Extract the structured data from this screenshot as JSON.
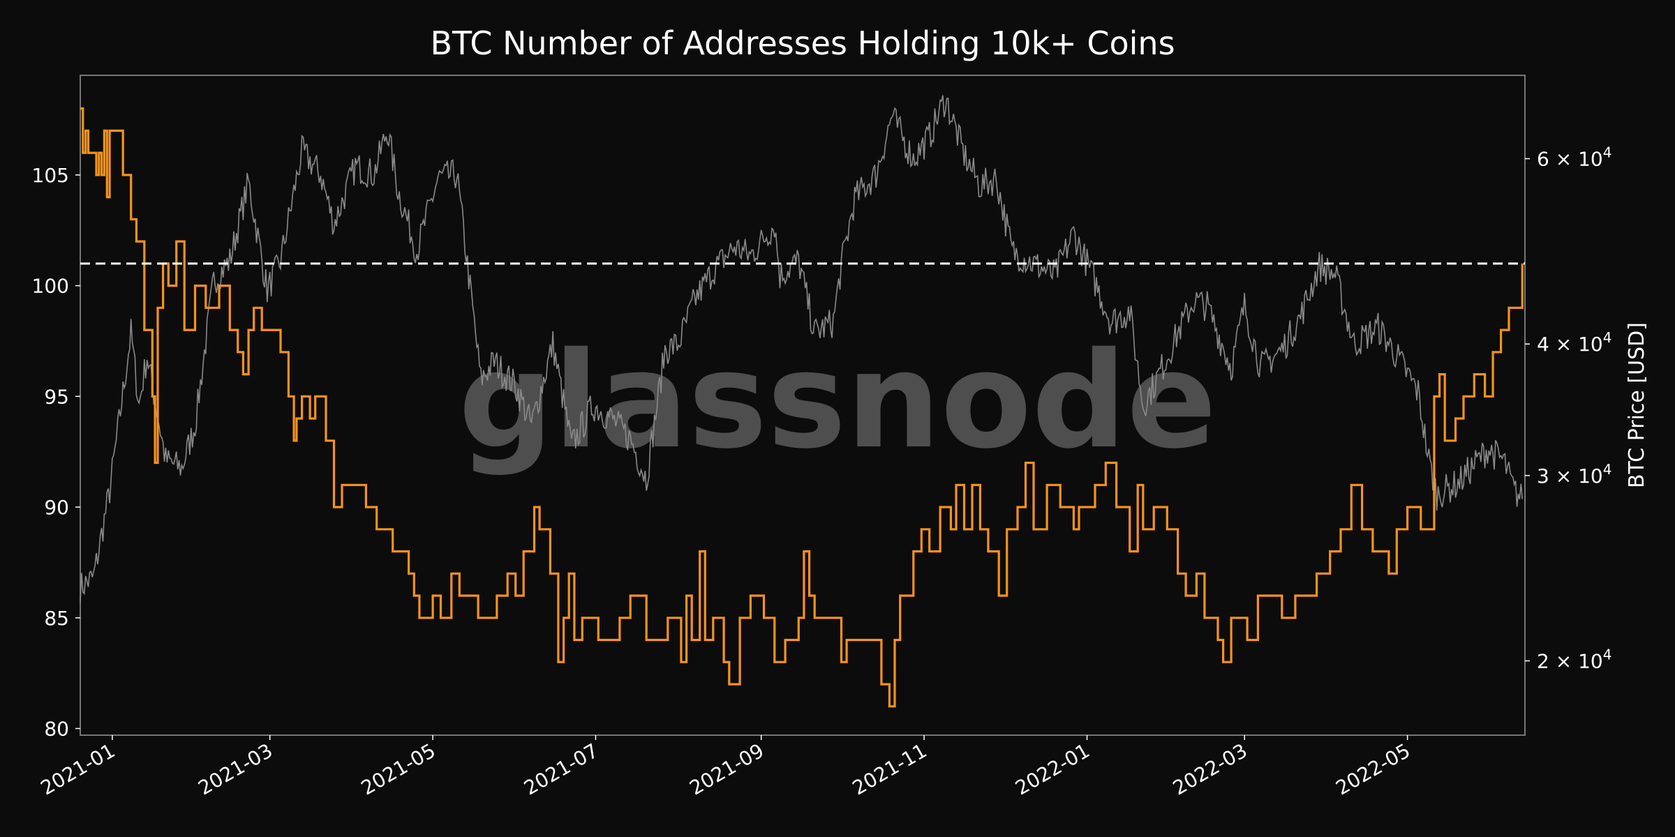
{
  "chart_data": {
    "type": "line",
    "title": "BTC Number of Addresses Holding 10k+ Coins",
    "xlabel": "",
    "ylabel": "",
    "y2label": "BTC Price [USD]",
    "watermark": "glassnode",
    "x_start": "2020-12-20",
    "x_end": "2022-06-14",
    "x_ticks": [
      "2021-01",
      "2021-03",
      "2021-05",
      "2021-07",
      "2021-09",
      "2021-11",
      "2022-01",
      "2022-03",
      "2022-05"
    ],
    "ylim": [
      79.7,
      109.5
    ],
    "y_ticks": [
      80,
      85,
      90,
      95,
      100,
      105
    ],
    "y2_scale": "log",
    "y2lim": [
      17000,
      72000
    ],
    "y2_ticks": [
      {
        "value": 20000,
        "mantissa": "2"
      },
      {
        "value": 30000,
        "mantissa": "3"
      },
      {
        "value": 40000,
        "mantissa": "4"
      },
      {
        "value": 60000,
        "mantissa": "6"
      }
    ],
    "y2_tick_base": "10",
    "y2_tick_exp": "4",
    "reference_line": 101,
    "colors": {
      "addresses": "#f7931a",
      "price": "#8a8a8a",
      "background": "#0c0c0c",
      "reference": "#ffffff",
      "watermark": "#5a5a5a"
    },
    "series": [
      {
        "axis": "left",
        "step": true,
        "points": [
          [
            "2020-12-20",
            108
          ],
          [
            "2020-12-21",
            106
          ],
          [
            "2020-12-22",
            107
          ],
          [
            "2020-12-23",
            106
          ],
          [
            "2020-12-26",
            105
          ],
          [
            "2020-12-27",
            106
          ],
          [
            "2020-12-28",
            105
          ],
          [
            "2020-12-29",
            107
          ],
          [
            "2020-12-30",
            104
          ],
          [
            "2020-12-31",
            107
          ],
          [
            "2021-01-05",
            105
          ],
          [
            "2021-01-08",
            103
          ],
          [
            "2021-01-10",
            102
          ],
          [
            "2021-01-13",
            98
          ],
          [
            "2021-01-16",
            95
          ],
          [
            "2021-01-17",
            92
          ],
          [
            "2021-01-18",
            99
          ],
          [
            "2021-01-20",
            101
          ],
          [
            "2021-01-22",
            100
          ],
          [
            "2021-01-25",
            102
          ],
          [
            "2021-01-28",
            98
          ],
          [
            "2021-02-01",
            100
          ],
          [
            "2021-02-05",
            99
          ],
          [
            "2021-02-10",
            100
          ],
          [
            "2021-02-14",
            98
          ],
          [
            "2021-02-17",
            97
          ],
          [
            "2021-02-19",
            96
          ],
          [
            "2021-02-21",
            98
          ],
          [
            "2021-02-23",
            99
          ],
          [
            "2021-02-26",
            98
          ],
          [
            "2021-03-05",
            97
          ],
          [
            "2021-03-08",
            95
          ],
          [
            "2021-03-10",
            93
          ],
          [
            "2021-03-11",
            94
          ],
          [
            "2021-03-13",
            95
          ],
          [
            "2021-03-16",
            94
          ],
          [
            "2021-03-18",
            95
          ],
          [
            "2021-03-22",
            93
          ],
          [
            "2021-03-25",
            90
          ],
          [
            "2021-03-28",
            91
          ],
          [
            "2021-04-06",
            90
          ],
          [
            "2021-04-10",
            89
          ],
          [
            "2021-04-16",
            88
          ],
          [
            "2021-04-22",
            87
          ],
          [
            "2021-04-24",
            86
          ],
          [
            "2021-04-26",
            85
          ],
          [
            "2021-05-01",
            86
          ],
          [
            "2021-05-04",
            85
          ],
          [
            "2021-05-08",
            87
          ],
          [
            "2021-05-11",
            86
          ],
          [
            "2021-05-18",
            85
          ],
          [
            "2021-05-25",
            86
          ],
          [
            "2021-05-29",
            87
          ],
          [
            "2021-06-01",
            86
          ],
          [
            "2021-06-04",
            88
          ],
          [
            "2021-06-08",
            90
          ],
          [
            "2021-06-10",
            89
          ],
          [
            "2021-06-14",
            87
          ],
          [
            "2021-06-17",
            83
          ],
          [
            "2021-06-19",
            85
          ],
          [
            "2021-06-21",
            87
          ],
          [
            "2021-06-23",
            84
          ],
          [
            "2021-06-26",
            85
          ],
          [
            "2021-07-02",
            84
          ],
          [
            "2021-07-10",
            85
          ],
          [
            "2021-07-14",
            86
          ],
          [
            "2021-07-20",
            84
          ],
          [
            "2021-07-28",
            85
          ],
          [
            "2021-08-02",
            83
          ],
          [
            "2021-08-04",
            86
          ],
          [
            "2021-08-06",
            84
          ],
          [
            "2021-08-09",
            88
          ],
          [
            "2021-08-11",
            84
          ],
          [
            "2021-08-14",
            85
          ],
          [
            "2021-08-18",
            83
          ],
          [
            "2021-08-20",
            82
          ],
          [
            "2021-08-24",
            85
          ],
          [
            "2021-08-28",
            86
          ],
          [
            "2021-09-02",
            85
          ],
          [
            "2021-09-06",
            83
          ],
          [
            "2021-09-10",
            84
          ],
          [
            "2021-09-15",
            85
          ],
          [
            "2021-09-17",
            88
          ],
          [
            "2021-09-19",
            86
          ],
          [
            "2021-09-21",
            85
          ],
          [
            "2021-10-01",
            83
          ],
          [
            "2021-10-03",
            84
          ],
          [
            "2021-10-07",
            84
          ],
          [
            "2021-10-10",
            84
          ],
          [
            "2021-10-16",
            82
          ],
          [
            "2021-10-19",
            81
          ],
          [
            "2021-10-21",
            84
          ],
          [
            "2021-10-23",
            86
          ],
          [
            "2021-10-26",
            86
          ],
          [
            "2021-10-28",
            88
          ],
          [
            "2021-10-31",
            89
          ],
          [
            "2021-11-03",
            88
          ],
          [
            "2021-11-07",
            90
          ],
          [
            "2021-11-11",
            89
          ],
          [
            "2021-11-13",
            91
          ],
          [
            "2021-11-16",
            89
          ],
          [
            "2021-11-19",
            91
          ],
          [
            "2021-11-22",
            89
          ],
          [
            "2021-11-25",
            88
          ],
          [
            "2021-11-29",
            86
          ],
          [
            "2021-12-02",
            89
          ],
          [
            "2021-12-06",
            90
          ],
          [
            "2021-12-09",
            92
          ],
          [
            "2021-12-12",
            89
          ],
          [
            "2021-12-17",
            91
          ],
          [
            "2021-12-22",
            90
          ],
          [
            "2021-12-27",
            89
          ],
          [
            "2021-12-29",
            90
          ],
          [
            "2022-01-04",
            91
          ],
          [
            "2022-01-08",
            92
          ],
          [
            "2022-01-12",
            90
          ],
          [
            "2022-01-17",
            88
          ],
          [
            "2022-01-20",
            91
          ],
          [
            "2022-01-22",
            89
          ],
          [
            "2022-01-26",
            90
          ],
          [
            "2022-01-31",
            89
          ],
          [
            "2022-02-04",
            87
          ],
          [
            "2022-02-07",
            86
          ],
          [
            "2022-02-11",
            87
          ],
          [
            "2022-02-14",
            85
          ],
          [
            "2022-02-19",
            84
          ],
          [
            "2022-02-21",
            83
          ],
          [
            "2022-02-24",
            85
          ],
          [
            "2022-03-02",
            84
          ],
          [
            "2022-03-06",
            86
          ],
          [
            "2022-03-15",
            85
          ],
          [
            "2022-03-20",
            86
          ],
          [
            "2022-03-28",
            87
          ],
          [
            "2022-04-02",
            88
          ],
          [
            "2022-04-06",
            89
          ],
          [
            "2022-04-10",
            91
          ],
          [
            "2022-04-14",
            89
          ],
          [
            "2022-04-18",
            88
          ],
          [
            "2022-04-24",
            87
          ],
          [
            "2022-04-27",
            89
          ],
          [
            "2022-05-01",
            90
          ],
          [
            "2022-05-06",
            89
          ],
          [
            "2022-05-11",
            95
          ],
          [
            "2022-05-13",
            96
          ],
          [
            "2022-05-15",
            93
          ],
          [
            "2022-05-19",
            94
          ],
          [
            "2022-05-22",
            95
          ],
          [
            "2022-05-26",
            96
          ],
          [
            "2022-05-30",
            95
          ],
          [
            "2022-06-02",
            97
          ],
          [
            "2022-06-05",
            98
          ],
          [
            "2022-06-08",
            99
          ],
          [
            "2022-06-11",
            99
          ],
          [
            "2022-06-13",
            101
          ]
        ]
      },
      {
        "axis": "right",
        "step": false,
        "points": [
          [
            "2020-12-20",
            23500
          ],
          [
            "2020-12-25",
            24000
          ],
          [
            "2020-12-31",
            29000
          ],
          [
            "2021-01-03",
            33000
          ],
          [
            "2021-01-08",
            41000
          ],
          [
            "2021-01-11",
            35000
          ],
          [
            "2021-01-14",
            39000
          ],
          [
            "2021-01-21",
            31000
          ],
          [
            "2021-01-27",
            30500
          ],
          [
            "2021-02-01",
            33500
          ],
          [
            "2021-02-08",
            46000
          ],
          [
            "2021-02-14",
            48000
          ],
          [
            "2021-02-21",
            57000
          ],
          [
            "2021-02-28",
            45000
          ],
          [
            "2021-03-05",
            48000
          ],
          [
            "2021-03-13",
            61000
          ],
          [
            "2021-03-20",
            58000
          ],
          [
            "2021-03-25",
            52000
          ],
          [
            "2021-04-02",
            59000
          ],
          [
            "2021-04-09",
            58000
          ],
          [
            "2021-04-14",
            64000
          ],
          [
            "2021-04-18",
            56000
          ],
          [
            "2021-04-25",
            49000
          ],
          [
            "2021-05-03",
            57500
          ],
          [
            "2021-05-10",
            58000
          ],
          [
            "2021-05-13",
            50000
          ],
          [
            "2021-05-19",
            37000
          ],
          [
            "2021-05-24",
            38500
          ],
          [
            "2021-06-01",
            36500
          ],
          [
            "2021-06-07",
            33500
          ],
          [
            "2021-06-15",
            40000
          ],
          [
            "2021-06-22",
            32000
          ],
          [
            "2021-06-30",
            35000
          ],
          [
            "2021-07-07",
            34000
          ],
          [
            "2021-07-14",
            32500
          ],
          [
            "2021-07-20",
            29800
          ],
          [
            "2021-07-27",
            39500
          ],
          [
            "2021-08-01",
            40000
          ],
          [
            "2021-08-07",
            44000
          ],
          [
            "2021-08-14",
            47000
          ],
          [
            "2021-08-22",
            49500
          ],
          [
            "2021-08-28",
            48500
          ],
          [
            "2021-09-06",
            52000
          ],
          [
            "2021-09-08",
            46500
          ],
          [
            "2021-09-15",
            48000
          ],
          [
            "2021-09-21",
            41000
          ],
          [
            "2021-09-28",
            42000
          ],
          [
            "2021-10-01",
            47500
          ],
          [
            "2021-10-06",
            55000
          ],
          [
            "2021-10-14",
            58000
          ],
          [
            "2021-10-20",
            66000
          ],
          [
            "2021-10-25",
            62000
          ],
          [
            "2021-10-28",
            60000
          ],
          [
            "2021-11-03",
            63000
          ],
          [
            "2021-11-09",
            68500
          ],
          [
            "2021-11-16",
            60500
          ],
          [
            "2021-11-22",
            56500
          ],
          [
            "2021-11-28",
            57500
          ],
          [
            "2021-12-04",
            49000
          ],
          [
            "2021-12-10",
            48000
          ],
          [
            "2021-12-20",
            46500
          ],
          [
            "2021-12-27",
            51000
          ],
          [
            "2022-01-03",
            46500
          ],
          [
            "2022-01-10",
            42000
          ],
          [
            "2022-01-17",
            43000
          ],
          [
            "2022-01-22",
            35000
          ],
          [
            "2022-01-27",
            37000
          ],
          [
            "2022-02-05",
            41500
          ],
          [
            "2022-02-10",
            44000
          ],
          [
            "2022-02-15",
            43500
          ],
          [
            "2022-02-24",
            38000
          ],
          [
            "2022-03-01",
            43500
          ],
          [
            "2022-03-07",
            38000
          ],
          [
            "2022-03-15",
            39500
          ],
          [
            "2022-03-22",
            42500
          ],
          [
            "2022-03-29",
            47500
          ],
          [
            "2022-04-04",
            46500
          ],
          [
            "2022-04-11",
            40000
          ],
          [
            "2022-04-20",
            41500
          ],
          [
            "2022-04-27",
            39000
          ],
          [
            "2022-05-05",
            36000
          ],
          [
            "2022-05-09",
            31000
          ],
          [
            "2022-05-12",
            28800
          ],
          [
            "2022-05-20",
            29500
          ],
          [
            "2022-05-31",
            31800
          ],
          [
            "2022-06-06",
            31000
          ],
          [
            "2022-06-10",
            29000
          ],
          [
            "2022-06-13",
            28500
          ]
        ]
      }
    ]
  }
}
